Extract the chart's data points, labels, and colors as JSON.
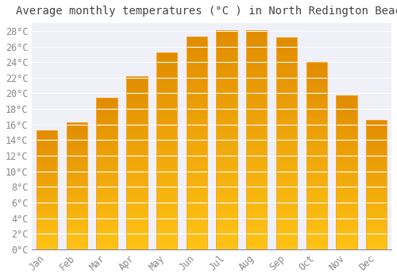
{
  "title": "Average monthly temperatures (°C ) in North Redington Beach",
  "months": [
    "Jan",
    "Feb",
    "Mar",
    "Apr",
    "May",
    "Jun",
    "Jul",
    "Aug",
    "Sep",
    "Oct",
    "Nov",
    "Dec"
  ],
  "values": [
    15.3,
    16.3,
    19.4,
    22.2,
    25.2,
    27.3,
    28.1,
    28.1,
    27.2,
    24.0,
    19.7,
    16.6
  ],
  "bar_color_bottom": "#FFD060",
  "bar_color_top": "#FFA020",
  "bar_edge_color": "#FFA020",
  "background_color": "#FFFFFF",
  "plot_bg_color": "#F0F0F8",
  "grid_color": "#FFFFFF",
  "ylim": [
    0,
    29
  ],
  "ytick_max": 28,
  "ytick_step": 2,
  "title_fontsize": 10,
  "tick_fontsize": 8.5,
  "font_family": "monospace"
}
